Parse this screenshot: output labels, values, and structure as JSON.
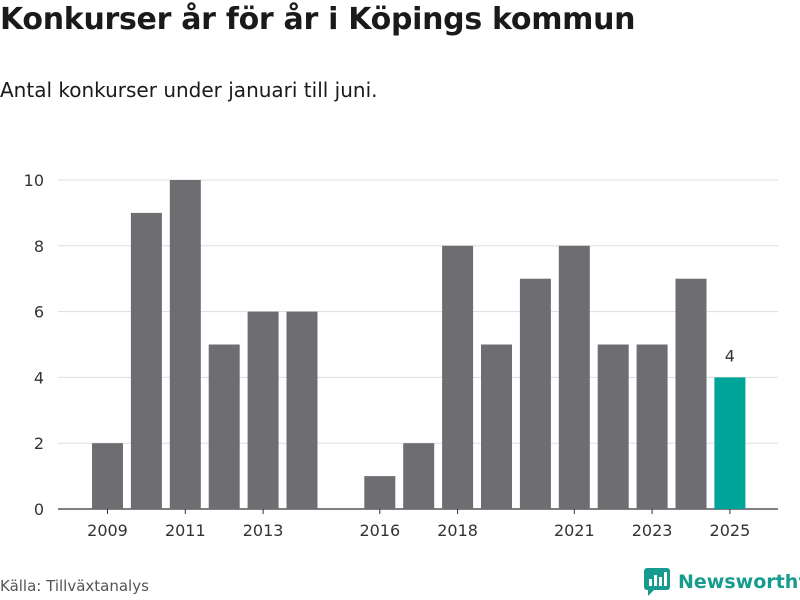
{
  "header": {
    "title": "Konkurser år för år i Köpings kommun",
    "subtitle": "Antal konkurser under januari till juni."
  },
  "footer": {
    "source": "Källa: Tillväxtanalys",
    "brand": "Newsworthy",
    "brand_icon": "newsworthy-chart-icon"
  },
  "colors": {
    "bar": "#6e6d72",
    "highlight": "#00a599",
    "grid": "#dddddd",
    "brand": "#169b8e"
  },
  "chart_data": {
    "type": "bar",
    "title": "Konkurser år för år i Köpings kommun",
    "subtitle": "Antal konkurser under januari till juni.",
    "xlabel": "",
    "ylabel": "",
    "x": [
      2009,
      2010,
      2011,
      2012,
      2013,
      2014,
      2015,
      2016,
      2017,
      2018,
      2019,
      2020,
      2021,
      2022,
      2023,
      2024,
      2025
    ],
    "values": [
      2,
      9,
      10,
      5,
      6,
      6,
      null,
      1,
      2,
      8,
      5,
      7,
      8,
      5,
      5,
      7,
      4
    ],
    "highlight_x": 2025,
    "highlight_label": "4",
    "xticks": [
      "2009",
      "2011",
      "2013",
      "2016",
      "2018",
      "2021",
      "2023",
      "2025"
    ],
    "yticks": [
      "0",
      "2",
      "4",
      "6",
      "8",
      "10"
    ],
    "ylim": [
      0,
      10
    ],
    "grid": "horizontal",
    "legend": "none"
  }
}
